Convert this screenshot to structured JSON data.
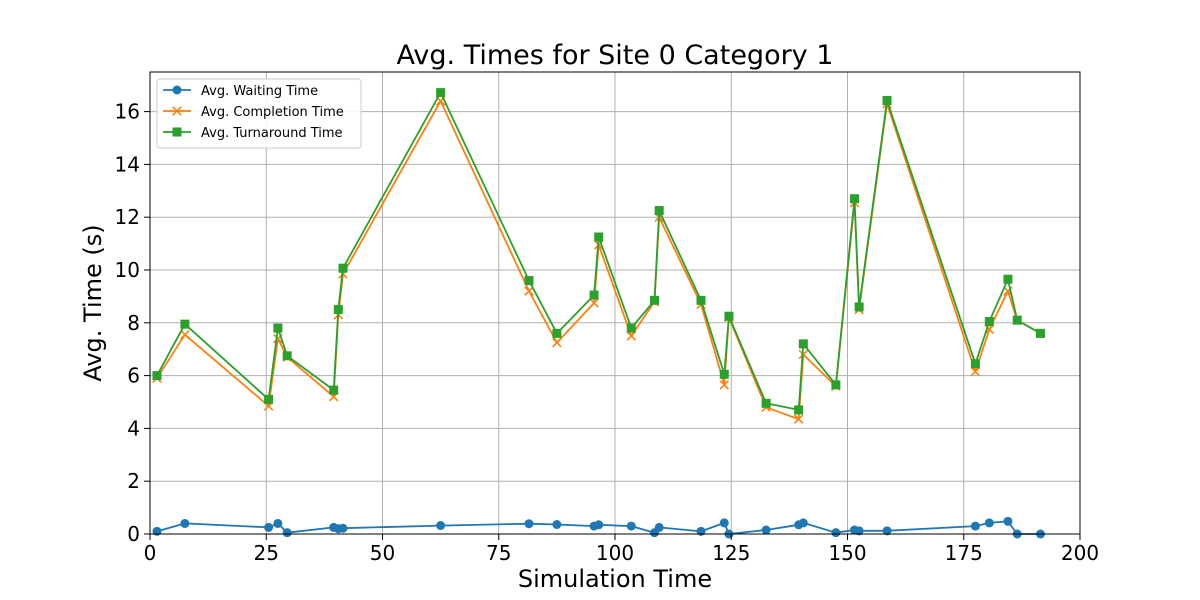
{
  "chart_data": {
    "type": "line",
    "title": "Avg. Times for Site 0 Category 1",
    "xlabel": "Simulation Time",
    "ylabel": "Avg. Time (s)",
    "xlim": [
      0,
      200
    ],
    "ylim": [
      0,
      17.5
    ],
    "xticks": [
      0,
      25,
      50,
      75,
      100,
      125,
      150,
      175,
      200
    ],
    "yticks": [
      0,
      2,
      4,
      6,
      8,
      10,
      12,
      14,
      16
    ],
    "grid": true,
    "legend_position": "top-left",
    "series": [
      {
        "name": "Avg. Waiting Time",
        "color": "#1f77b4",
        "marker": "circle",
        "x": [
          1.5,
          7.5,
          25.5,
          27.5,
          29.5,
          39.5,
          40.5,
          41.5,
          62.5,
          81.5,
          87.5,
          95.5,
          96.5,
          103.5,
          108.5,
          109.5,
          118.5,
          123.5,
          124.5,
          132.5,
          139.5,
          140.5,
          147.5,
          151.5,
          152.5,
          158.5,
          177.5,
          180.5,
          184.5,
          186.5,
          191.5
        ],
        "values": [
          0.1,
          0.4,
          0.25,
          0.4,
          0.05,
          0.25,
          0.2,
          0.22,
          0.32,
          0.39,
          0.36,
          0.3,
          0.35,
          0.3,
          0.05,
          0.25,
          0.1,
          0.42,
          0.0,
          0.15,
          0.35,
          0.42,
          0.05,
          0.15,
          0.12,
          0.12,
          0.3,
          0.42,
          0.48,
          0.0,
          0.0
        ]
      },
      {
        "name": "Avg. Completion Time",
        "color": "#ff7f0e",
        "marker": "x",
        "x": [
          1.5,
          7.5,
          25.5,
          27.5,
          29.5,
          39.5,
          40.5,
          41.5,
          62.5,
          81.5,
          87.5,
          95.5,
          96.5,
          103.5,
          108.5,
          109.5,
          118.5,
          123.5,
          124.5,
          132.5,
          139.5,
          140.5,
          147.5,
          151.5,
          152.5,
          158.5,
          177.5,
          180.5,
          184.5,
          186.5,
          191.5
        ],
        "values": [
          5.9,
          7.55,
          4.85,
          7.4,
          6.7,
          5.2,
          8.3,
          9.85,
          16.4,
          9.2,
          7.25,
          8.75,
          10.95,
          7.5,
          8.8,
          12.0,
          8.7,
          5.65,
          8.2,
          4.8,
          4.35,
          6.8,
          5.6,
          12.55,
          8.5,
          16.3,
          6.15,
          7.75,
          9.2,
          8.1,
          7.6
        ]
      },
      {
        "name": "Avg. Turnaround Time",
        "color": "#2ca02c",
        "marker": "square",
        "x": [
          1.5,
          7.5,
          25.5,
          27.5,
          29.5,
          39.5,
          40.5,
          41.5,
          62.5,
          81.5,
          87.5,
          95.5,
          96.5,
          103.5,
          108.5,
          109.5,
          118.5,
          123.5,
          124.5,
          132.5,
          139.5,
          140.5,
          147.5,
          151.5,
          152.5,
          158.5,
          177.5,
          180.5,
          184.5,
          186.5,
          191.5
        ],
        "values": [
          6.0,
          7.95,
          5.1,
          7.8,
          6.75,
          5.45,
          8.5,
          10.07,
          16.72,
          9.6,
          7.6,
          9.05,
          11.25,
          7.8,
          8.85,
          12.25,
          8.85,
          6.05,
          8.25,
          4.95,
          4.7,
          7.2,
          5.65,
          12.7,
          8.6,
          16.42,
          6.45,
          8.05,
          9.65,
          8.1,
          7.6
        ]
      }
    ]
  }
}
